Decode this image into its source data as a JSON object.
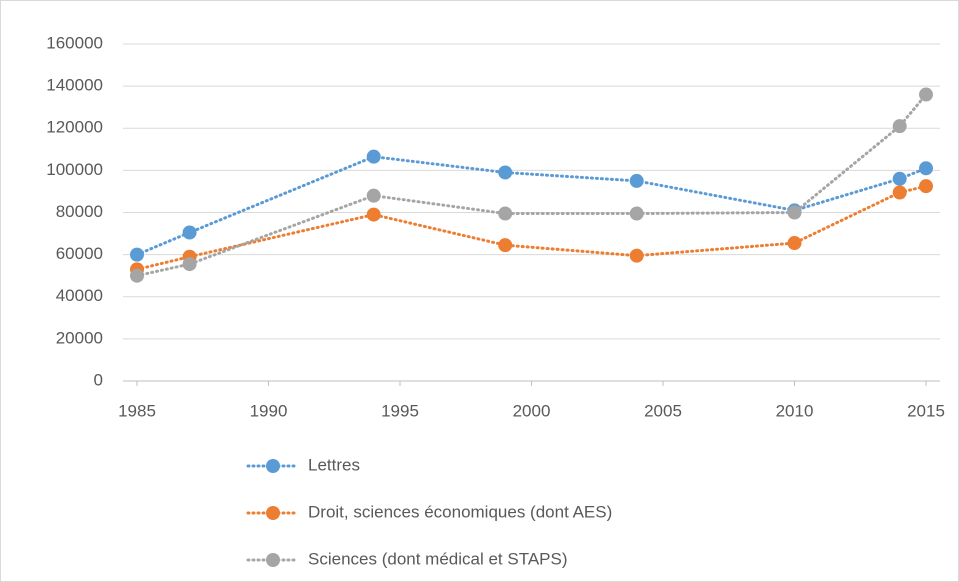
{
  "chart_data": {
    "type": "line",
    "x": [
      1985,
      1987,
      1994,
      1999,
      2004,
      2010,
      2014,
      2015
    ],
    "series": [
      {
        "name": "Lettres",
        "color": "#5b9bd5",
        "values": [
          60000,
          70500,
          106500,
          99000,
          95000,
          81000,
          96000,
          101000
        ]
      },
      {
        "name": "Droit, sciences économiques (dont AES)",
        "color": "#ed7d31",
        "values": [
          53000,
          59000,
          79000,
          64500,
          59500,
          65500,
          89500,
          92500
        ]
      },
      {
        "name": "Sciences (dont médical et STAPS)",
        "color": "#a5a5a5",
        "values": [
          50000,
          55500,
          88000,
          79500,
          79500,
          80000,
          121000,
          136000
        ]
      }
    ],
    "xlim": [
      1985,
      2015
    ],
    "xticks": [
      1985,
      1990,
      1995,
      2000,
      2005,
      2010,
      2015
    ],
    "ylim": [
      0,
      160000
    ],
    "yticks": [
      0,
      20000,
      40000,
      60000,
      80000,
      100000,
      120000,
      140000,
      160000
    ],
    "grid": true,
    "legend": "bottom"
  }
}
